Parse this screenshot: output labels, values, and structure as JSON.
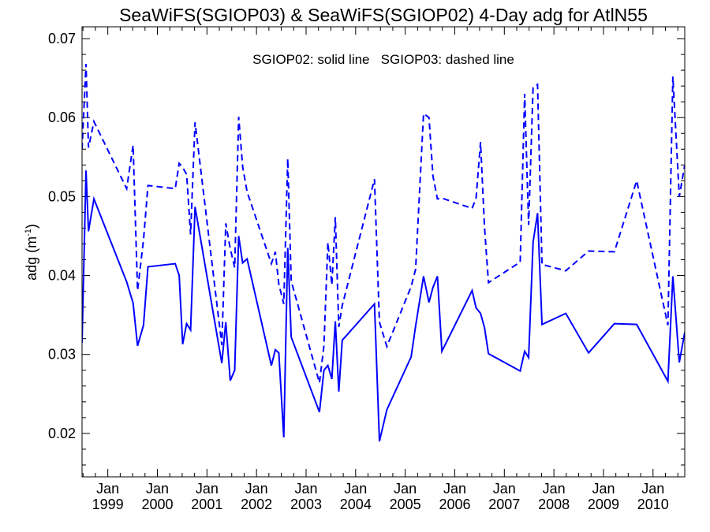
{
  "chart_data": {
    "type": "line",
    "title": "SeaWiFS(SGIOP03) & SeaWiFS(SGIOP02) 4-Day adg for AtlN55",
    "annotation": "SGIOP02: solid line   SGIOP03: dashed line",
    "ylabel_base": "adg (m",
    "ylabel_sup": "-1",
    "ylabel_end": ")",
    "xlim": [
      1998.48,
      2010.64
    ],
    "ylim": [
      0.0145,
      0.0715
    ],
    "ytick_values": [
      0.02,
      0.03,
      0.04,
      0.05,
      0.06,
      0.07
    ],
    "ytick_labels": [
      "0.02",
      "0.03",
      "0.04",
      "0.05",
      "0.06",
      "0.07"
    ],
    "xticks": [
      {
        "x": 1999.0,
        "month": "Jan",
        "year": "1999"
      },
      {
        "x": 2000.0,
        "month": "Jan",
        "year": "2000"
      },
      {
        "x": 2001.0,
        "month": "Jan",
        "year": "2001"
      },
      {
        "x": 2002.0,
        "month": "Jan",
        "year": "2002"
      },
      {
        "x": 2003.0,
        "month": "Jan",
        "year": "2003"
      },
      {
        "x": 2004.0,
        "month": "Jan",
        "year": "2004"
      },
      {
        "x": 2005.0,
        "month": "Jan",
        "year": "2005"
      },
      {
        "x": 2006.0,
        "month": "Jan",
        "year": "2006"
      },
      {
        "x": 2007.0,
        "month": "Jan",
        "year": "2007"
      },
      {
        "x": 2008.0,
        "month": "Jan",
        "year": "2008"
      },
      {
        "x": 2009.0,
        "month": "Jan",
        "year": "2009"
      },
      {
        "x": 2010.0,
        "month": "Jan",
        "year": "2010"
      }
    ],
    "grid": false,
    "line_color": "#0000ff",
    "series": [
      {
        "name": "SGIOP02",
        "style": "solid",
        "points": [
          [
            1998.48,
            0.0315
          ],
          [
            1998.56,
            0.0533
          ],
          [
            1998.61,
            0.0456
          ],
          [
            1998.72,
            0.0497
          ],
          [
            1999.38,
            0.0392
          ],
          [
            1999.51,
            0.0365
          ],
          [
            1999.6,
            0.0311
          ],
          [
            1999.72,
            0.0337
          ],
          [
            1999.81,
            0.0411
          ],
          [
            2000.36,
            0.0415
          ],
          [
            2000.44,
            0.04
          ],
          [
            2000.51,
            0.0313
          ],
          [
            2000.59,
            0.0339
          ],
          [
            2000.67,
            0.0331
          ],
          [
            2000.76,
            0.0487
          ],
          [
            2001.3,
            0.0289
          ],
          [
            2001.38,
            0.0341
          ],
          [
            2001.47,
            0.0267
          ],
          [
            2001.56,
            0.028
          ],
          [
            2001.64,
            0.045
          ],
          [
            2001.72,
            0.0416
          ],
          [
            2001.81,
            0.0421
          ],
          [
            2002.3,
            0.0286
          ],
          [
            2002.38,
            0.0306
          ],
          [
            2002.45,
            0.0302
          ],
          [
            2002.55,
            0.0195
          ],
          [
            2002.63,
            0.0435
          ],
          [
            2002.7,
            0.0322
          ],
          [
            2003.27,
            0.0227
          ],
          [
            2003.36,
            0.028
          ],
          [
            2003.44,
            0.0286
          ],
          [
            2003.52,
            0.0269
          ],
          [
            2003.59,
            0.0342
          ],
          [
            2003.66,
            0.0253
          ],
          [
            2003.73,
            0.0318
          ],
          [
            2004.38,
            0.0364
          ],
          [
            2004.48,
            0.019
          ],
          [
            2004.63,
            0.023
          ],
          [
            2005.12,
            0.0297
          ],
          [
            2005.21,
            0.0336
          ],
          [
            2005.37,
            0.0399
          ],
          [
            2005.48,
            0.0366
          ],
          [
            2005.56,
            0.0385
          ],
          [
            2005.65,
            0.0399
          ],
          [
            2005.74,
            0.0304
          ],
          [
            2006.35,
            0.0381
          ],
          [
            2006.43,
            0.0359
          ],
          [
            2006.52,
            0.0352
          ],
          [
            2006.6,
            0.0334
          ],
          [
            2006.68,
            0.0301
          ],
          [
            2007.32,
            0.0279
          ],
          [
            2007.41,
            0.0304
          ],
          [
            2007.49,
            0.0296
          ],
          [
            2007.58,
            0.0442
          ],
          [
            2007.67,
            0.0479
          ],
          [
            2007.76,
            0.0338
          ],
          [
            2008.24,
            0.0352
          ],
          [
            2008.7,
            0.0302
          ],
          [
            2009.22,
            0.0339
          ],
          [
            2009.67,
            0.0338
          ],
          [
            2010.3,
            0.0266
          ],
          [
            2010.4,
            0.0399
          ],
          [
            2010.53,
            0.029
          ],
          [
            2010.64,
            0.0328
          ]
        ]
      },
      {
        "name": "SGIOP03",
        "style": "dashed",
        "points": [
          [
            1998.48,
            0.056
          ],
          [
            1998.56,
            0.0668
          ],
          [
            1998.61,
            0.0562
          ],
          [
            1998.72,
            0.0595
          ],
          [
            1999.38,
            0.051
          ],
          [
            1999.51,
            0.0565
          ],
          [
            1999.6,
            0.0381
          ],
          [
            1999.72,
            0.0445
          ],
          [
            1999.81,
            0.0514
          ],
          [
            2000.36,
            0.051
          ],
          [
            2000.44,
            0.0542
          ],
          [
            2000.51,
            0.0537
          ],
          [
            2000.59,
            0.0528
          ],
          [
            2000.67,
            0.0452
          ],
          [
            2000.76,
            0.0594
          ],
          [
            2001.3,
            0.0312
          ],
          [
            2001.38,
            0.0466
          ],
          [
            2001.47,
            0.0434
          ],
          [
            2001.56,
            0.041
          ],
          [
            2001.64,
            0.0601
          ],
          [
            2001.72,
            0.0538
          ],
          [
            2001.81,
            0.0506
          ],
          [
            2002.3,
            0.0415
          ],
          [
            2002.38,
            0.043
          ],
          [
            2002.45,
            0.0389
          ],
          [
            2002.55,
            0.0364
          ],
          [
            2002.63,
            0.0548
          ],
          [
            2002.7,
            0.0393
          ],
          [
            2003.27,
            0.0264
          ],
          [
            2003.36,
            0.0311
          ],
          [
            2003.44,
            0.0442
          ],
          [
            2003.52,
            0.0388
          ],
          [
            2003.59,
            0.0474
          ],
          [
            2003.66,
            0.0335
          ],
          [
            2003.73,
            0.0362
          ],
          [
            2004.38,
            0.0522
          ],
          [
            2004.48,
            0.0341
          ],
          [
            2004.63,
            0.031
          ],
          [
            2005.12,
            0.0386
          ],
          [
            2005.21,
            0.0408
          ],
          [
            2005.37,
            0.0605
          ],
          [
            2005.48,
            0.06
          ],
          [
            2005.56,
            0.0526
          ],
          [
            2005.65,
            0.0497
          ],
          [
            2005.74,
            0.0498
          ],
          [
            2006.35,
            0.0485
          ],
          [
            2006.43,
            0.0498
          ],
          [
            2006.52,
            0.0569
          ],
          [
            2006.6,
            0.0461
          ],
          [
            2006.68,
            0.0391
          ],
          [
            2007.32,
            0.0417
          ],
          [
            2007.41,
            0.063
          ],
          [
            2007.49,
            0.0464
          ],
          [
            2007.58,
            0.0638
          ],
          [
            2007.67,
            0.0642
          ],
          [
            2007.76,
            0.0414
          ],
          [
            2008.24,
            0.0406
          ],
          [
            2008.7,
            0.0431
          ],
          [
            2009.22,
            0.043
          ],
          [
            2009.67,
            0.052
          ],
          [
            2010.3,
            0.0337
          ],
          [
            2010.4,
            0.0652
          ],
          [
            2010.53,
            0.05
          ],
          [
            2010.64,
            0.054
          ]
        ]
      }
    ]
  }
}
